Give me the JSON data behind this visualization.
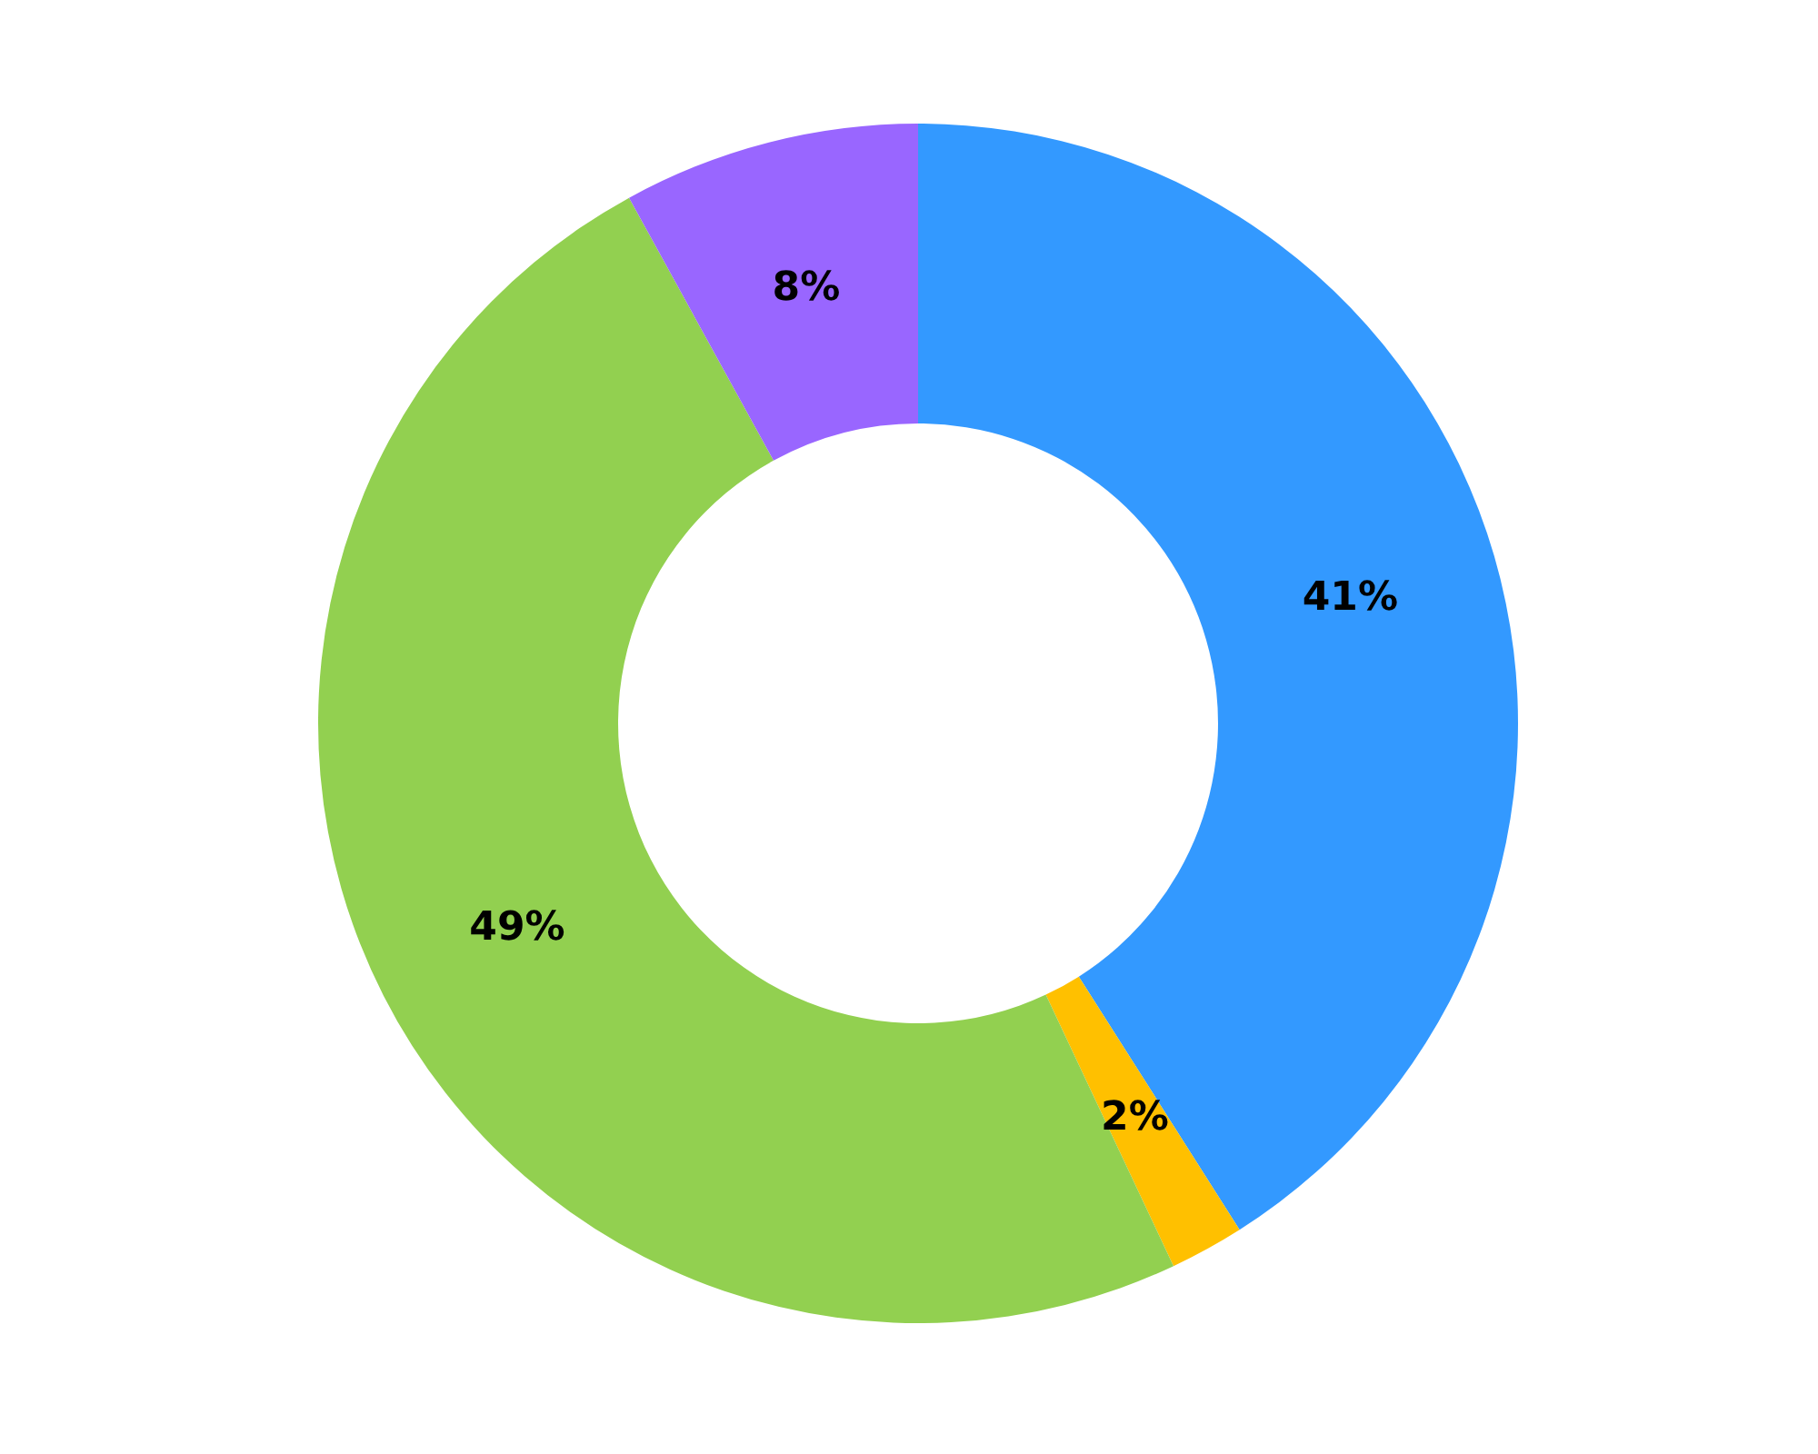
{
  "chart_data": {
    "type": "donut",
    "categories": [
      null,
      null,
      null,
      null
    ],
    "values": [
      41,
      2,
      49,
      8
    ],
    "colors": [
      "#3399ff",
      "#ffc000",
      "#92d050",
      "#9966ff"
    ],
    "value_labels": [
      "41%",
      "2%",
      "49%",
      "8%"
    ]
  }
}
